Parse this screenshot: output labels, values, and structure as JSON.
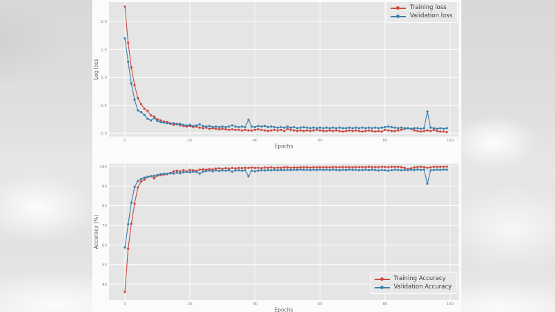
{
  "style": {
    "figure_bg": "#fbfbfb",
    "plot_bg": "#e5e5e5",
    "grid_color": "#ffffff",
    "tick_color": "#8a8a8a",
    "axis_label_color": "#5c5c5c",
    "training_color": "#cc4a42",
    "validation_color": "#3c80ac"
  },
  "chart_data": [
    {
      "type": "line",
      "title": "",
      "xlabel": "Epochs",
      "ylabel": "Log loss",
      "grid": true,
      "legend_position": "upper right",
      "xlim": [
        -4.9,
        102.6
      ],
      "ylim": [
        -0.06,
        2.35
      ],
      "xticks": {
        "values": [
          0,
          20,
          40,
          60,
          80,
          100
        ],
        "labels": [
          "0",
          "20",
          "40",
          "60",
          "80",
          "100"
        ]
      },
      "yticks": {
        "values": [
          0.0,
          0.5,
          1.0,
          1.5,
          2.0
        ],
        "labels": [
          "0.0",
          "0.5",
          "1.0",
          "1.5",
          "2.0"
        ]
      },
      "x_start": 0,
      "x_step": 1,
      "series": [
        {
          "name": "Training loss",
          "color": "#cc4a42",
          "values": [
            2.27,
            1.62,
            1.18,
            0.86,
            0.63,
            0.52,
            0.44,
            0.4,
            0.32,
            0.3,
            0.25,
            0.23,
            0.21,
            0.2,
            0.18,
            0.15,
            0.17,
            0.14,
            0.13,
            0.12,
            0.13,
            0.11,
            0.12,
            0.1,
            0.09,
            0.1,
            0.08,
            0.09,
            0.08,
            0.07,
            0.08,
            0.07,
            0.06,
            0.07,
            0.06,
            0.06,
            0.05,
            0.06,
            0.05,
            0.05,
            0.06,
            0.07,
            0.06,
            0.05,
            0.04,
            0.05,
            0.06,
            0.05,
            0.06,
            0.04,
            0.08,
            0.06,
            0.05,
            0.04,
            0.05,
            0.04,
            0.05,
            0.04,
            0.05,
            0.06,
            0.05,
            0.04,
            0.04,
            0.05,
            0.04,
            0.05,
            0.04,
            0.03,
            0.04,
            0.05,
            0.04,
            0.05,
            0.04,
            0.03,
            0.04,
            0.05,
            0.04,
            0.03,
            0.04,
            0.03,
            0.06,
            0.05,
            0.04,
            0.04,
            0.05,
            0.06,
            0.08,
            0.09,
            0.08,
            0.05,
            0.04,
            0.03,
            0.04,
            0.05,
            0.04,
            0.06,
            0.04,
            0.03,
            0.03,
            0.02
          ]
        },
        {
          "name": "Validation loss",
          "color": "#3c80ac",
          "values": [
            1.7,
            1.28,
            0.89,
            0.6,
            0.41,
            0.38,
            0.33,
            0.26,
            0.23,
            0.27,
            0.22,
            0.2,
            0.19,
            0.18,
            0.17,
            0.18,
            0.16,
            0.17,
            0.15,
            0.14,
            0.15,
            0.13,
            0.14,
            0.16,
            0.13,
            0.12,
            0.13,
            0.11,
            0.12,
            0.11,
            0.12,
            0.11,
            0.12,
            0.14,
            0.12,
            0.11,
            0.12,
            0.11,
            0.24,
            0.12,
            0.11,
            0.13,
            0.12,
            0.13,
            0.11,
            0.12,
            0.11,
            0.1,
            0.11,
            0.1,
            0.12,
            0.1,
            0.11,
            0.09,
            0.1,
            0.11,
            0.1,
            0.09,
            0.1,
            0.09,
            0.1,
            0.09,
            0.1,
            0.09,
            0.1,
            0.09,
            0.1,
            0.09,
            0.09,
            0.1,
            0.09,
            0.1,
            0.09,
            0.1,
            0.09,
            0.1,
            0.09,
            0.1,
            0.09,
            0.1,
            0.11,
            0.12,
            0.11,
            0.1,
            0.09,
            0.1,
            0.09,
            0.09,
            0.08,
            0.09,
            0.09,
            0.08,
            0.09,
            0.39,
            0.1,
            0.09,
            0.08,
            0.09,
            0.08,
            0.09
          ]
        }
      ]
    },
    {
      "type": "line",
      "title": "",
      "xlabel": "Epochs",
      "ylabel": "Accuracy (%)",
      "grid": true,
      "legend_position": "lower right",
      "xlim": [
        -4.9,
        102.6
      ],
      "ylim": [
        31.9,
        101.4
      ],
      "xticks": {
        "values": [
          0,
          20,
          40,
          60,
          80,
          100
        ],
        "labels": [
          "0",
          "20",
          "40",
          "60",
          "80",
          "100"
        ]
      },
      "yticks": {
        "values": [
          40,
          50,
          60,
          70,
          80,
          90,
          100
        ],
        "labels": [
          "40",
          "50",
          "60",
          "70",
          "80",
          "90",
          "100"
        ]
      },
      "x_start": 0,
      "x_step": 1,
      "series": [
        {
          "name": "Training Accuracy",
          "color": "#cc4a42",
          "values": [
            36.1,
            58.0,
            70.8,
            81.0,
            89.3,
            92.3,
            93.2,
            94.6,
            95.0,
            94.0,
            95.3,
            95.5,
            95.8,
            96.0,
            96.6,
            97.5,
            97.8,
            97.4,
            98.0,
            97.5,
            98.2,
            98.0,
            97.8,
            98.3,
            98.5,
            98.3,
            98.6,
            98.4,
            98.9,
            99.0,
            98.8,
            99.1,
            98.9,
            99.2,
            99.0,
            99.2,
            99.1,
            99.3,
            99.2,
            99.4,
            99.2,
            99.3,
            99.1,
            99.4,
            99.3,
            99.5,
            99.2,
            99.4,
            99.3,
            99.5,
            99.6,
            99.3,
            99.5,
            99.4,
            99.6,
            99.5,
            99.6,
            99.4,
            99.6,
            99.5,
            99.7,
            99.5,
            99.6,
            99.5,
            99.7,
            99.6,
            99.5,
            99.7,
            99.6,
            99.7,
            99.5,
            99.7,
            99.6,
            99.7,
            99.6,
            99.8,
            99.6,
            99.7,
            99.6,
            99.8,
            99.7,
            99.6,
            99.8,
            99.7,
            99.8,
            99.6,
            99.3,
            98.6,
            99.0,
            99.5,
            99.7,
            99.8,
            99.6,
            99.3,
            99.5,
            99.8,
            99.7,
            99.8,
            99.8,
            99.9
          ]
        },
        {
          "name": "Validation Accuracy",
          "color": "#3c80ac",
          "values": [
            58.7,
            70.5,
            81.5,
            89.5,
            92.5,
            93.5,
            94.3,
            94.7,
            95.0,
            95.2,
            95.6,
            96.0,
            96.2,
            96.3,
            96.5,
            96.4,
            96.8,
            96.5,
            97.0,
            97.2,
            97.0,
            97.3,
            97.1,
            96.4,
            97.3,
            97.6,
            97.8,
            97.5,
            97.9,
            97.7,
            97.9,
            97.8,
            98.0,
            97.3,
            97.9,
            98.0,
            97.8,
            98.0,
            95.0,
            97.8,
            97.5,
            97.8,
            98.0,
            97.9,
            98.1,
            98.0,
            98.2,
            98.0,
            98.2,
            98.1,
            98.3,
            98.1,
            98.3,
            98.2,
            98.4,
            98.2,
            98.3,
            98.1,
            98.3,
            98.2,
            98.4,
            98.2,
            98.3,
            98.1,
            98.4,
            98.2,
            98.0,
            98.3,
            98.1,
            98.4,
            98.2,
            98.3,
            98.0,
            98.2,
            98.3,
            98.1,
            98.3,
            98.2,
            97.9,
            98.2,
            98.0,
            97.8,
            98.1,
            98.3,
            98.2,
            98.0,
            98.2,
            98.1,
            98.3,
            98.2,
            98.4,
            98.2,
            98.3,
            91.2,
            98.0,
            98.2,
            98.3,
            98.2,
            98.4,
            98.3
          ]
        }
      ]
    }
  ]
}
